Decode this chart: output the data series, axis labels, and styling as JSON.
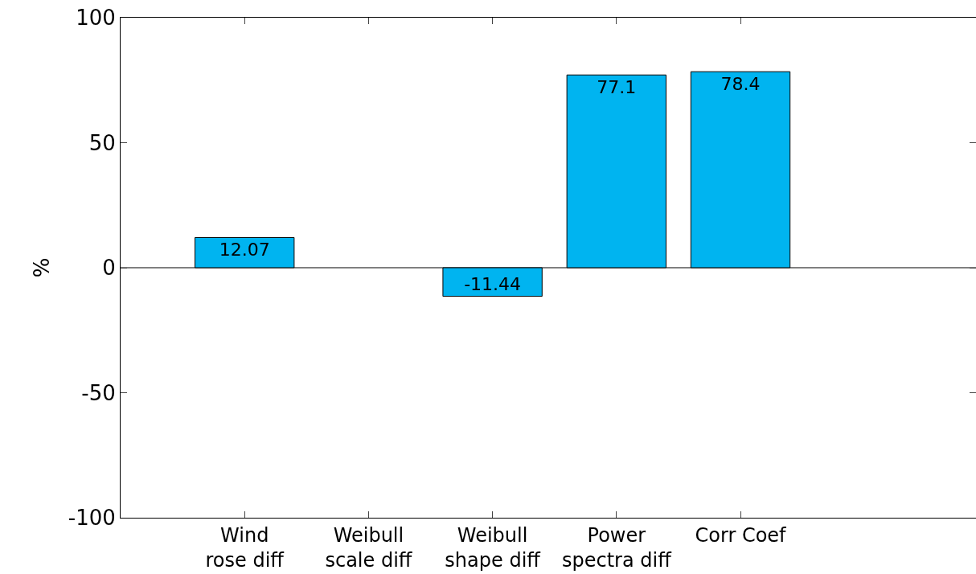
{
  "chart_data": {
    "type": "bar",
    "categories": [
      "Wind\nrose diff",
      "Weibull\nscale diff",
      "Weibull\nshape diff",
      "Power\nspectra diff",
      "Corr Coef"
    ],
    "values": [
      12.07,
      null,
      -11.44,
      77.1,
      78.4
    ],
    "color": "#00b4f0",
    "ylabel": "%",
    "ylim": [
      -100,
      100
    ],
    "yticks": [
      -100,
      -50,
      0,
      50,
      100
    ],
    "ref_lines": [
      {
        "axis": "y",
        "value": 0,
        "color": "#000000"
      }
    ],
    "data_labels": true,
    "grid": false,
    "legend": false
  }
}
